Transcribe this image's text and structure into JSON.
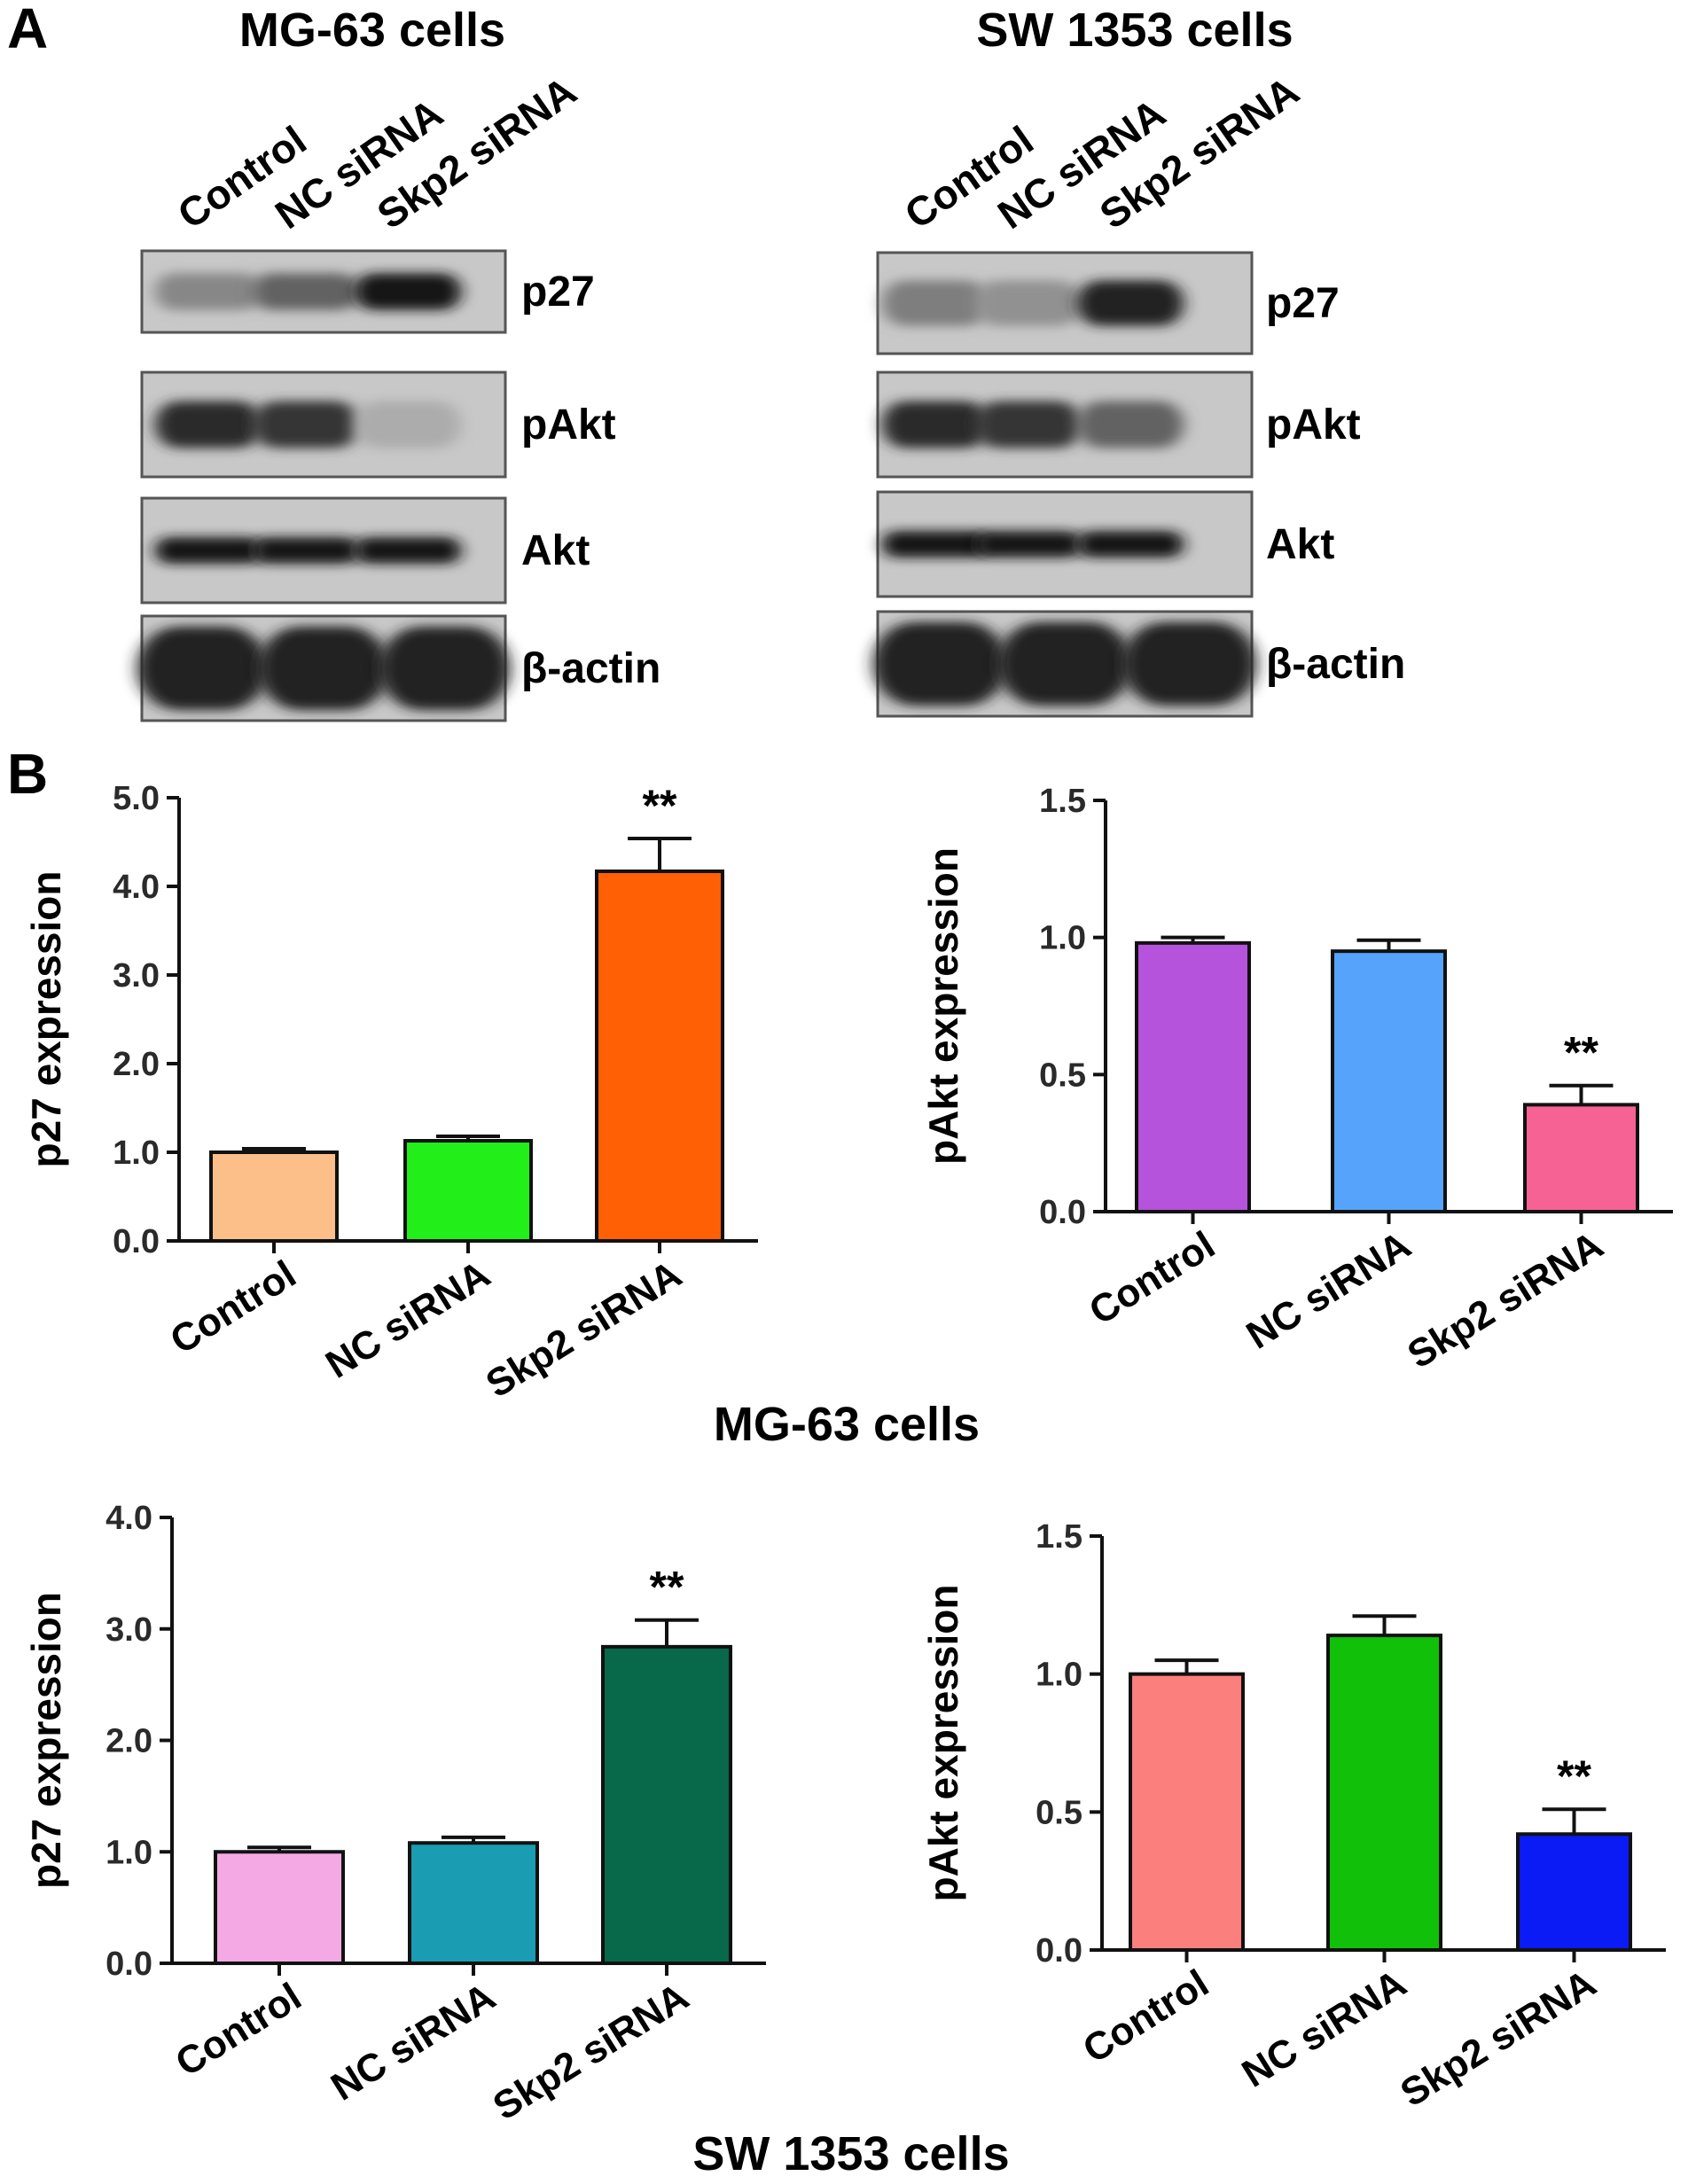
{
  "panel_labels": {
    "a": "A",
    "b": "B"
  },
  "blots": [
    {
      "title": "MG-63 cells",
      "lanes": [
        "Control",
        "NC siRNA",
        "Skp2 siRNA"
      ],
      "rows": [
        {
          "protein": "p27",
          "band_intensity": [
            0.35,
            0.55,
            0.95
          ]
        },
        {
          "protein": "pAkt",
          "band_intensity": [
            0.85,
            0.8,
            0.15
          ]
        },
        {
          "protein": "Akt",
          "band_intensity": [
            0.95,
            0.95,
            0.95
          ]
        },
        {
          "protein": "β-actin",
          "band_intensity": [
            0.9,
            0.9,
            0.9
          ]
        }
      ]
    },
    {
      "title": "SW  1353 cells",
      "lanes": [
        "Control",
        "NC siRNA",
        "Skp2 siRNA"
      ],
      "rows": [
        {
          "protein": "p27",
          "band_intensity": [
            0.4,
            0.3,
            0.9
          ]
        },
        {
          "protein": "pAkt",
          "band_intensity": [
            0.85,
            0.8,
            0.55
          ]
        },
        {
          "protein": "Akt",
          "band_intensity": [
            0.95,
            0.95,
            0.95
          ]
        },
        {
          "protein": "β-actin",
          "band_intensity": [
            0.9,
            0.9,
            0.9
          ]
        }
      ]
    }
  ],
  "group_captions": [
    "MG-63 cells",
    "SW 1353 cells"
  ],
  "chart_data": [
    {
      "type": "bar",
      "group": "MG-63 cells",
      "ylabel": "p27 expression",
      "categories": [
        "Control",
        "NC siRNA",
        "Skp2 siRNA"
      ],
      "values": [
        1.0,
        1.13,
        4.17
      ],
      "errors": [
        0.04,
        0.05,
        0.37
      ],
      "colors": [
        "#fcbf8a",
        "#22ee1a",
        "#ff5f05"
      ],
      "significance": [
        "",
        "",
        "**"
      ],
      "ylim": [
        0,
        5
      ],
      "ticks": [
        0.0,
        1.0,
        2.0,
        3.0,
        4.0,
        5.0
      ],
      "tick_labels": [
        "0.0",
        "1.0",
        "2.0",
        "3.0",
        "4.0",
        "5.0"
      ]
    },
    {
      "type": "bar",
      "group": "MG-63 cells",
      "ylabel": "pAkt expression",
      "categories": [
        "Control",
        "NC siRNA",
        "Skp2 siRNA"
      ],
      "values": [
        0.98,
        0.95,
        0.39
      ],
      "errors": [
        0.02,
        0.04,
        0.07
      ],
      "colors": [
        "#b553dc",
        "#55a3fb",
        "#f76295"
      ],
      "significance": [
        "",
        "",
        "**"
      ],
      "ylim": [
        0,
        1.5
      ],
      "ticks": [
        0.0,
        0.5,
        1.0,
        1.5
      ],
      "tick_labels": [
        "0.0",
        "0.5",
        "1.0",
        "1.5"
      ]
    },
    {
      "type": "bar",
      "group": "SW 1353 cells",
      "ylabel": "p27 expression",
      "categories": [
        "Control",
        "NC siRNA",
        "Skp2 siRNA"
      ],
      "values": [
        1.0,
        1.08,
        2.84
      ],
      "errors": [
        0.04,
        0.05,
        0.24
      ],
      "colors": [
        "#f4a9e4",
        "#1a9cb2",
        "#08684a"
      ],
      "significance": [
        "",
        "",
        "**"
      ],
      "ylim": [
        0,
        4
      ],
      "ticks": [
        0.0,
        1.0,
        2.0,
        3.0,
        4.0
      ],
      "tick_labels": [
        "0.0",
        "1.0",
        "2.0",
        "3.0",
        "4.0"
      ]
    },
    {
      "type": "bar",
      "group": "SW 1353 cells",
      "ylabel": "pAkt expression",
      "categories": [
        "Control",
        "NC siRNA",
        "Skp2 siRNA"
      ],
      "values": [
        1.0,
        1.14,
        0.42
      ],
      "errors": [
        0.05,
        0.07,
        0.09
      ],
      "colors": [
        "#fa7f7d",
        "#11c009",
        "#0a1bf5"
      ],
      "significance": [
        "",
        "",
        "**"
      ],
      "ylim": [
        0,
        1.5
      ],
      "ticks": [
        0.0,
        0.5,
        1.0,
        1.5
      ],
      "tick_labels": [
        "0.0",
        "0.5",
        "1.0",
        "1.5"
      ]
    }
  ]
}
